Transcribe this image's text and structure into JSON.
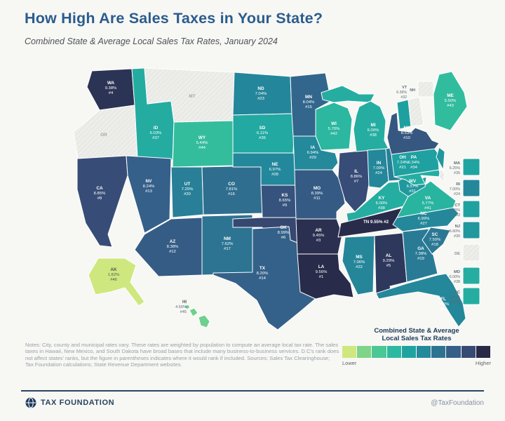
{
  "header": {
    "title": "How High Are Sales Taxes in Your State?",
    "subtitle": "Combined State & Average Local Sales Tax Rates, January 2024"
  },
  "chart_data": {
    "type": "choropleth",
    "geography": "United States",
    "metric": "Combined state & average local sales tax rate, January 2024",
    "states": [
      {
        "abbr": "AK",
        "rate": 1.82,
        "rate_label": "1.82%",
        "rank": "#46"
      },
      {
        "abbr": "AL",
        "rate": 9.29,
        "rate_label": "9.29%",
        "rank": "#5"
      },
      {
        "abbr": "AR",
        "rate": 9.45,
        "rate_label": "9.45%",
        "rank": "#3"
      },
      {
        "abbr": "AZ",
        "rate": 8.38,
        "rate_label": "8.38%",
        "rank": "#12"
      },
      {
        "abbr": "CA",
        "rate": 8.85,
        "rate_label": "8.85%",
        "rank": "#8"
      },
      {
        "abbr": "CO",
        "rate": 7.81,
        "rate_label": "7.81%",
        "rank": "#16"
      },
      {
        "abbr": "CT",
        "rate": 6.35,
        "rate_label": "6.35%",
        "rank": "#33"
      },
      {
        "abbr": "DC",
        "rate": 6.0,
        "rate_label": "6.00%",
        "rank": "(#38)"
      },
      {
        "abbr": "DE",
        "rate": 0,
        "rate_label": "",
        "rank": ""
      },
      {
        "abbr": "FL",
        "rate": 7.0,
        "rate_label": "7.00%",
        "rank": "#24"
      },
      {
        "abbr": "GA",
        "rate": 7.38,
        "rate_label": "7.38%",
        "rank": "#19"
      },
      {
        "abbr": "HI",
        "rate": 4.5,
        "rate_label": "4.50%",
        "rank": "#45"
      },
      {
        "abbr": "IA",
        "rate": 6.94,
        "rate_label": "6.94%",
        "rank": "#29"
      },
      {
        "abbr": "ID",
        "rate": 6.03,
        "rate_label": "6.03%",
        "rank": "#37"
      },
      {
        "abbr": "IL",
        "rate": 8.86,
        "rate_label": "8.86%",
        "rank": "#7"
      },
      {
        "abbr": "IN",
        "rate": 7.0,
        "rate_label": "7.00%",
        "rank": "#24"
      },
      {
        "abbr": "KS",
        "rate": 8.65,
        "rate_label": "8.65%",
        "rank": "#9"
      },
      {
        "abbr": "KY",
        "rate": 6.0,
        "rate_label": "6.00%",
        "rank": "#38"
      },
      {
        "abbr": "LA",
        "rate": 9.56,
        "rate_label": "9.56%",
        "rank": "#1"
      },
      {
        "abbr": "MA",
        "rate": 6.25,
        "rate_label": "6.25%",
        "rank": "#35"
      },
      {
        "abbr": "MD",
        "rate": 6.0,
        "rate_label": "6.00%",
        "rank": "#38"
      },
      {
        "abbr": "ME",
        "rate": 5.5,
        "rate_label": "5.50%",
        "rank": "#43"
      },
      {
        "abbr": "MI",
        "rate": 6.0,
        "rate_label": "6.00%",
        "rank": "#38"
      },
      {
        "abbr": "MN",
        "rate": 8.04,
        "rate_label": "8.04%",
        "rank": "#15"
      },
      {
        "abbr": "MO",
        "rate": 8.39,
        "rate_label": "8.39%",
        "rank": "#11"
      },
      {
        "abbr": "MS",
        "rate": 7.06,
        "rate_label": "7.06%",
        "rank": "#22"
      },
      {
        "abbr": "MT",
        "rate": 0,
        "rate_label": "",
        "rank": ""
      },
      {
        "abbr": "NC",
        "rate": 6.99,
        "rate_label": "6.99%",
        "rank": "#27"
      },
      {
        "abbr": "ND",
        "rate": 7.04,
        "rate_label": "7.04%",
        "rank": "#23"
      },
      {
        "abbr": "NE",
        "rate": 6.97,
        "rate_label": "6.97%",
        "rank": "#28"
      },
      {
        "abbr": "NH",
        "rate": 0,
        "rate_label": "",
        "rank": ""
      },
      {
        "abbr": "NJ",
        "rate": 6.6,
        "rate_label": "6.60%",
        "rank": "#30"
      },
      {
        "abbr": "NM",
        "rate": 7.62,
        "rate_label": "7.62%",
        "rank": "#17"
      },
      {
        "abbr": "NV",
        "rate": 8.24,
        "rate_label": "8.24%",
        "rank": "#13"
      },
      {
        "abbr": "NY",
        "rate": 8.53,
        "rate_label": "8.53%",
        "rank": "#10"
      },
      {
        "abbr": "OH",
        "rate": 7.24,
        "rate_label": "7.24%",
        "rank": "#21"
      },
      {
        "abbr": "OK",
        "rate": 8.99,
        "rate_label": "8.99%",
        "rank": "#6"
      },
      {
        "abbr": "OR",
        "rate": 0,
        "rate_label": "",
        "rank": ""
      },
      {
        "abbr": "PA",
        "rate": 6.34,
        "rate_label": "6.34%",
        "rank": "#34"
      },
      {
        "abbr": "RI",
        "rate": 7.0,
        "rate_label": "7.00%",
        "rank": "#24"
      },
      {
        "abbr": "SC",
        "rate": 7.5,
        "rate_label": "7.50%",
        "rank": "#18"
      },
      {
        "abbr": "SD",
        "rate": 6.11,
        "rate_label": "6.11%",
        "rank": "#36"
      },
      {
        "abbr": "TN",
        "rate": 9.55,
        "rate_label": "9.55%",
        "rank": "#2"
      },
      {
        "abbr": "TX",
        "rate": 8.2,
        "rate_label": "8.20%",
        "rank": "#14"
      },
      {
        "abbr": "UT",
        "rate": 7.25,
        "rate_label": "7.25%",
        "rank": "#20"
      },
      {
        "abbr": "VA",
        "rate": 5.77,
        "rate_label": "5.77%",
        "rank": "#41"
      },
      {
        "abbr": "VT",
        "rate": 6.36,
        "rate_label": "6.36%",
        "rank": "#32"
      },
      {
        "abbr": "WA",
        "rate": 9.38,
        "rate_label": "9.38%",
        "rank": "#4"
      },
      {
        "abbr": "WI",
        "rate": 5.7,
        "rate_label": "5.70%",
        "rank": "#42"
      },
      {
        "abbr": "WV",
        "rate": 6.57,
        "rate_label": "6.57%",
        "rank": "#31"
      },
      {
        "abbr": "WY",
        "rate": 5.44,
        "rate_label": "5.44%",
        "rank": "#44"
      }
    ],
    "no_sales_tax_states": [
      "DE",
      "MT",
      "NH",
      "OR"
    ],
    "side_states": [
      "MA",
      "RI",
      "CT",
      "NJ",
      "DE",
      "MD",
      "DC"
    ],
    "scale": {
      "domain_min": 4.3,
      "domain_max": 9.6,
      "no_tax_color": "#e9e9e6"
    }
  },
  "legend": {
    "title_line1": "Combined State & Average",
    "title_line2": "Local Sales Tax Rates",
    "lower_label": "Lower",
    "higher_label": "Higher",
    "colors": [
      "#cfe77f",
      "#7ed489",
      "#49c795",
      "#2cb9a0",
      "#1fa3a1",
      "#23899b",
      "#2d7492",
      "#355f88",
      "#374a74",
      "#272946"
    ]
  },
  "notes": "Notes: City, county and municipal rates vary. These rates are weighted by population to compute an average local tax rate. The sales taxes in Hawaii, New Mexico, and South Dakota have broad bases that include many business-to-business services. D.C's rank does not affect states' ranks, but the figure in parentheses indicates where it would rank if included. Sources: Sales Tax Clearinghouse; Tax Foundation calculations; State Revenue Department websites.",
  "footer": {
    "brand": "TAX FOUNDATION",
    "handle": "@TaxFoundation"
  }
}
